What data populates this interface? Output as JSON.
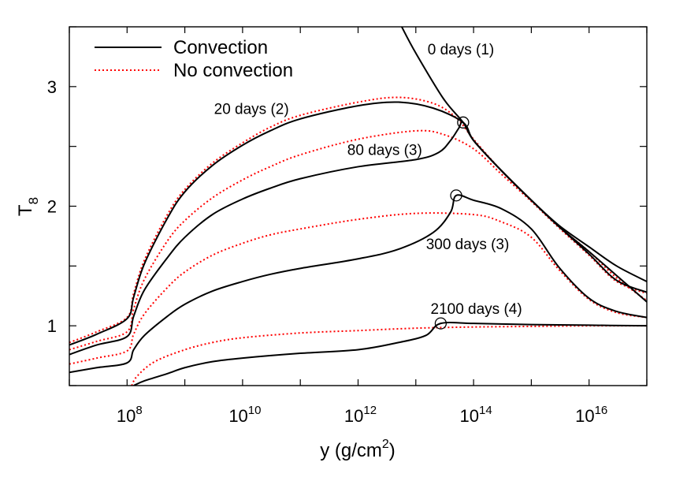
{
  "chart_data": {
    "type": "line",
    "xlabel": {
      "main": "y (g/cm",
      "sup": "2",
      "close": ")"
    },
    "ylabel": {
      "main": "T",
      "sub": "8"
    },
    "xscale": "log",
    "xlim": [
      10000000.0,
      1e+17
    ],
    "ylim": [
      0.5,
      3.5
    ],
    "xticks": [
      {
        "value": 100000000.0,
        "base": "10",
        "exp": "8"
      },
      {
        "value": 10000000000.0,
        "base": "10",
        "exp": "10"
      },
      {
        "value": 1000000000000.0,
        "base": "10",
        "exp": "12"
      },
      {
        "value": 100000000000000.0,
        "base": "10",
        "exp": "14"
      },
      {
        "value": 1e+16,
        "base": "10",
        "exp": "16"
      }
    ],
    "yticks": [
      {
        "value": 1,
        "label": "1"
      },
      {
        "value": 2,
        "label": "2"
      },
      {
        "value": 3,
        "label": "3"
      }
    ],
    "grid": false,
    "legend": {
      "position": "top-left",
      "entries": [
        {
          "label": "Convection",
          "color": "#000000",
          "style": "solid"
        },
        {
          "label": "No convection",
          "color": "#ff0000",
          "style": "dotted"
        }
      ]
    },
    "colors": {
      "convection": "#000000",
      "no_convection": "#ff0000"
    },
    "annotations": [
      {
        "text": "0 days (1)",
        "x": 16000000000000.0,
        "y": 3.27
      },
      {
        "text": "20 days (2)",
        "x": 3200000000.0,
        "y": 2.77
      },
      {
        "text": "80 days (3)",
        "x": 650000000000.0,
        "y": 2.43
      },
      {
        "text": "300 days (3)",
        "x": 15000000000000.0,
        "y": 1.64
      },
      {
        "text": "2100 days (4)",
        "x": 18000000000000.0,
        "y": 1.1
      }
    ],
    "markers": [
      {
        "x": 66000000000000.0,
        "y": 2.7
      },
      {
        "x": 50000000000000.0,
        "y": 2.09
      },
      {
        "x": 27000000000000.0,
        "y": 1.02
      }
    ],
    "series": [
      {
        "id": "conv-0",
        "group": "convection",
        "points": [
          [
            5700000000000.0,
            3.5
          ],
          [
            10000000000000.0,
            3.28
          ],
          [
            30000000000000.0,
            2.9
          ],
          [
            66000000000000.0,
            2.7
          ],
          [
            100000000000000.0,
            2.55
          ],
          [
            300000000000000.0,
            2.3
          ],
          [
            1000000000000000.0,
            2.05
          ],
          [
            3000000000000000.0,
            1.84
          ],
          [
            1e+16,
            1.66
          ],
          [
            3e+16,
            1.5
          ],
          [
            1e+17,
            1.37
          ]
        ]
      },
      {
        "id": "conv-20",
        "group": "convection",
        "points": [
          [
            10000000.0,
            0.84
          ],
          [
            30000000.0,
            0.93
          ],
          [
            100000000.0,
            1.06
          ],
          [
            130000000.0,
            1.24
          ],
          [
            200000000.0,
            1.52
          ],
          [
            500000000.0,
            1.9
          ],
          [
            1000000000.0,
            2.12
          ],
          [
            3000000000.0,
            2.34
          ],
          [
            10000000000.0,
            2.51
          ],
          [
            30000000000.0,
            2.63
          ],
          [
            100000000000.0,
            2.73
          ],
          [
            1000000000000.0,
            2.84
          ],
          [
            5000000000000.0,
            2.87
          ],
          [
            20000000000000.0,
            2.82
          ],
          [
            66000000000000.0,
            2.7
          ],
          [
            100000000000000.0,
            2.55
          ],
          [
            300000000000000.0,
            2.3
          ],
          [
            1000000000000000.0,
            2.05
          ],
          [
            3000000000000000.0,
            1.83
          ],
          [
            1e+16,
            1.62
          ],
          [
            3e+16,
            1.42
          ],
          [
            1e+17,
            1.2
          ]
        ]
      },
      {
        "id": "conv-80",
        "group": "convection",
        "points": [
          [
            10000000.0,
            0.76
          ],
          [
            30000000.0,
            0.84
          ],
          [
            100000000.0,
            0.91
          ],
          [
            130000000.0,
            1.08
          ],
          [
            200000000.0,
            1.3
          ],
          [
            500000000.0,
            1.57
          ],
          [
            1000000000.0,
            1.74
          ],
          [
            3000000000.0,
            1.93
          ],
          [
            10000000000.0,
            2.06
          ],
          [
            30000000000.0,
            2.15
          ],
          [
            100000000000.0,
            2.23
          ],
          [
            1000000000000.0,
            2.33
          ],
          [
            10000000000000.0,
            2.39
          ],
          [
            25000000000000.0,
            2.45
          ],
          [
            40000000000000.0,
            2.55
          ],
          [
            55000000000000.0,
            2.65
          ],
          [
            66000000000000.0,
            2.7
          ],
          [
            100000000000000.0,
            2.55
          ],
          [
            300000000000000.0,
            2.3
          ],
          [
            1000000000000000.0,
            2.05
          ],
          [
            3000000000000000.0,
            1.83
          ],
          [
            1e+16,
            1.6
          ],
          [
            3e+16,
            1.38
          ],
          [
            1e+17,
            1.28
          ]
        ]
      },
      {
        "id": "conv-300",
        "group": "convection",
        "points": [
          [
            10000000.0,
            0.61
          ],
          [
            30000000.0,
            0.65
          ],
          [
            100000000.0,
            0.69
          ],
          [
            130000000.0,
            0.8
          ],
          [
            200000000.0,
            0.92
          ],
          [
            500000000.0,
            1.08
          ],
          [
            1000000000.0,
            1.18
          ],
          [
            3000000000.0,
            1.29
          ],
          [
            10000000000.0,
            1.37
          ],
          [
            30000000000.0,
            1.43
          ],
          [
            100000000000.0,
            1.48
          ],
          [
            1000000000000.0,
            1.56
          ],
          [
            5000000000000.0,
            1.64
          ],
          [
            20000000000000.0,
            1.78
          ],
          [
            40000000000000.0,
            1.95
          ],
          [
            50000000000000.0,
            2.09
          ],
          [
            100000000000000.0,
            2.05
          ],
          [
            300000000000000.0,
            1.98
          ],
          [
            1000000000000000.0,
            1.81
          ],
          [
            3000000000000000.0,
            1.49
          ],
          [
            1e+16,
            1.23
          ],
          [
            3e+16,
            1.12
          ],
          [
            1e+17,
            1.07
          ]
        ]
      },
      {
        "id": "conv-2100",
        "group": "convection",
        "points": [
          [
            130000000.0,
            0.5
          ],
          [
            200000000.0,
            0.54
          ],
          [
            500000000.0,
            0.6
          ],
          [
            1000000000.0,
            0.65
          ],
          [
            3000000000.0,
            0.7
          ],
          [
            10000000000.0,
            0.73
          ],
          [
            100000000000.0,
            0.77
          ],
          [
            1000000000000.0,
            0.8
          ],
          [
            5000000000000.0,
            0.86
          ],
          [
            15000000000000.0,
            0.92
          ],
          [
            27000000000000.0,
            1.02
          ],
          [
            100000000000000.0,
            1.02
          ],
          [
            1000000000000000.0,
            1.01
          ],
          [
            1e+16,
            1.005
          ],
          [
            1e+17,
            1.0
          ]
        ]
      },
      {
        "id": "noconv-20",
        "group": "no_convection",
        "points": [
          [
            10000000.0,
            0.86
          ],
          [
            30000000.0,
            0.95
          ],
          [
            100000000.0,
            1.07
          ],
          [
            130000000.0,
            1.27
          ],
          [
            200000000.0,
            1.55
          ],
          [
            500000000.0,
            1.93
          ],
          [
            1000000000.0,
            2.14
          ],
          [
            3000000000.0,
            2.36
          ],
          [
            10000000000.0,
            2.53
          ],
          [
            30000000000.0,
            2.66
          ],
          [
            100000000000.0,
            2.76
          ],
          [
            1000000000000.0,
            2.87
          ],
          [
            5000000000000.0,
            2.91
          ],
          [
            20000000000000.0,
            2.86
          ],
          [
            50000000000000.0,
            2.74
          ],
          [
            100000000000000.0,
            2.56
          ],
          [
            300000000000000.0,
            2.3
          ],
          [
            1000000000000000.0,
            2.05
          ],
          [
            3000000000000000.0,
            1.83
          ],
          [
            1e+16,
            1.62
          ],
          [
            3e+16,
            1.4
          ],
          [
            1e+17,
            1.21
          ]
        ]
      },
      {
        "id": "noconv-80",
        "group": "no_convection",
        "points": [
          [
            10000000.0,
            0.8
          ],
          [
            30000000.0,
            0.87
          ],
          [
            100000000.0,
            0.95
          ],
          [
            130000000.0,
            1.14
          ],
          [
            200000000.0,
            1.39
          ],
          [
            500000000.0,
            1.71
          ],
          [
            1000000000.0,
            1.88
          ],
          [
            3000000000.0,
            2.07
          ],
          [
            10000000000.0,
            2.22
          ],
          [
            30000000000.0,
            2.33
          ],
          [
            100000000000.0,
            2.43
          ],
          [
            1000000000000.0,
            2.56
          ],
          [
            10000000000000.0,
            2.63
          ],
          [
            30000000000000.0,
            2.6
          ],
          [
            100000000000000.0,
            2.48
          ],
          [
            300000000000000.0,
            2.27
          ],
          [
            1000000000000000.0,
            2.04
          ],
          [
            3000000000000000.0,
            1.82
          ],
          [
            1e+16,
            1.59
          ],
          [
            3e+16,
            1.37
          ],
          [
            1e+17,
            1.27
          ]
        ]
      },
      {
        "id": "noconv-300",
        "group": "no_convection",
        "points": [
          [
            10000000.0,
            0.68
          ],
          [
            30000000.0,
            0.73
          ],
          [
            100000000.0,
            0.79
          ],
          [
            130000000.0,
            0.93
          ],
          [
            200000000.0,
            1.1
          ],
          [
            500000000.0,
            1.32
          ],
          [
            1000000000.0,
            1.45
          ],
          [
            3000000000.0,
            1.59
          ],
          [
            10000000000.0,
            1.69
          ],
          [
            30000000000.0,
            1.76
          ],
          [
            100000000000.0,
            1.81
          ],
          [
            1000000000000.0,
            1.89
          ],
          [
            10000000000000.0,
            1.94
          ],
          [
            100000000000000.0,
            1.93
          ],
          [
            300000000000000.0,
            1.87
          ],
          [
            1000000000000000.0,
            1.74
          ],
          [
            3000000000000000.0,
            1.47
          ],
          [
            1e+16,
            1.22
          ],
          [
            3e+16,
            1.11
          ],
          [
            1e+17,
            1.07
          ]
        ]
      },
      {
        "id": "noconv-2100",
        "group": "no_convection",
        "points": [
          [
            120000000.0,
            0.5
          ],
          [
            150000000.0,
            0.58
          ],
          [
            300000000.0,
            0.7
          ],
          [
            1000000000.0,
            0.8
          ],
          [
            3000000000.0,
            0.86
          ],
          [
            10000000000.0,
            0.9
          ],
          [
            100000000000.0,
            0.94
          ],
          [
            1000000000000.0,
            0.96
          ],
          [
            10000000000000.0,
            0.98
          ],
          [
            100000000000000.0,
            0.99
          ],
          [
            1000000000000000.0,
            0.995
          ],
          [
            1e+16,
            1.0
          ],
          [
            1e+17,
            1.0
          ]
        ]
      }
    ]
  }
}
